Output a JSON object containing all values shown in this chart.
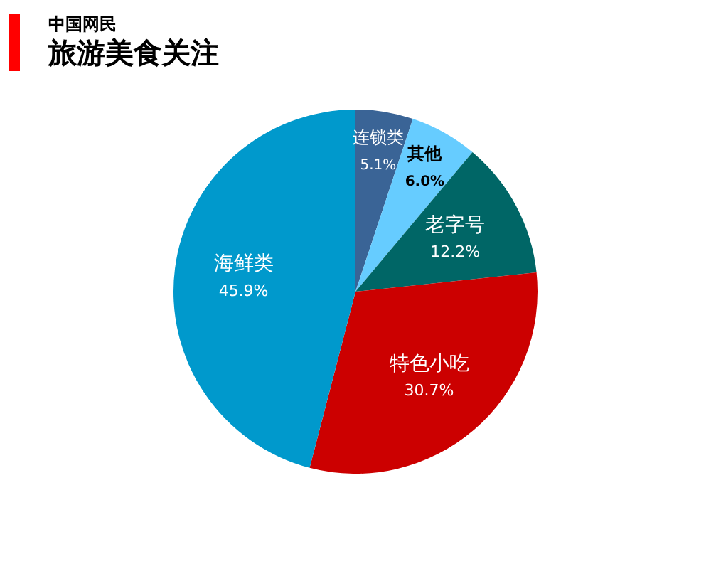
{
  "chart_data": {
    "type": "pie",
    "subtitle": "中国网民",
    "title": "旅游美食关注",
    "categories": [
      "连锁类",
      "其他",
      "老字号",
      "特色小吃",
      "海鲜类"
    ],
    "values": [
      5.1,
      6.0,
      12.2,
      30.7,
      45.9
    ],
    "value_labels": [
      "5.1%",
      "6.0%",
      "12.2%",
      "30.7%",
      "45.9%"
    ],
    "colors": [
      "#3a6496",
      "#66ccff",
      "#006666",
      "#cc0000",
      "#0099cc"
    ],
    "legend": false
  }
}
